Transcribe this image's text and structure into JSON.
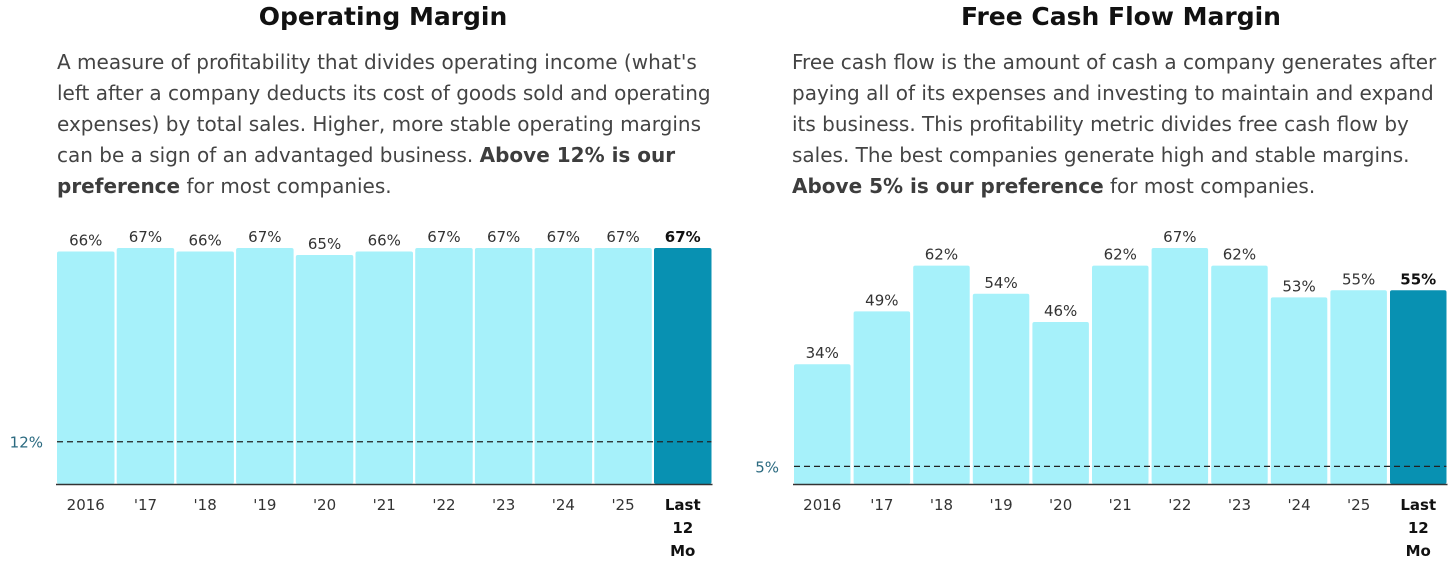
{
  "left_panel": {
    "title": "Operating Margin",
    "description_main": "A measure of profitability that divides operating income (what's left after a company deducts its cost of goods sold and operating expenses) by total sales. Higher, more stable operating margins can be a sign of an advantaged business.",
    "description_bold": "Above 12% is our preference",
    "description_tail": " for most companies."
  },
  "right_panel": {
    "title": "Free Cash Flow Margin",
    "description_main": "Free cash flow is the amount of cash a company generates after paying all of its expenses and investing to maintain and expand its business. This profitability metric divides free cash flow by sales. The best companies generate high and stable margins.",
    "description_bold": "Above 5% is our preference",
    "description_tail": " for most companies."
  },
  "colors": {
    "bar": "#a6f1fa",
    "bar_highlight": "#0891b2",
    "reference_label": "#2b6a80",
    "axis": "#333333"
  },
  "chart_data": [
    {
      "type": "bar",
      "title": "Operating Margin",
      "categories": [
        "2016",
        "'17",
        "'18",
        "'19",
        "'20",
        "'21",
        "'22",
        "'23",
        "'24",
        "'25",
        "Last 12 Mo"
      ],
      "values": [
        66,
        67,
        66,
        67,
        65,
        66,
        67,
        67,
        67,
        67,
        67
      ],
      "value_labels": [
        "66%",
        "67%",
        "66%",
        "67%",
        "65%",
        "66%",
        "67%",
        "67%",
        "67%",
        "67%",
        "67%"
      ],
      "highlight_index": 10,
      "reference_line": {
        "value": 12,
        "label": "12%"
      },
      "ylim": [
        0,
        67
      ],
      "grid": false,
      "xlabel": "",
      "ylabel": ""
    },
    {
      "type": "bar",
      "title": "Free Cash Flow Margin",
      "categories": [
        "2016",
        "'17",
        "'18",
        "'19",
        "'20",
        "'21",
        "'22",
        "'23",
        "'24",
        "'25",
        "Last 12 Mo"
      ],
      "values": [
        34,
        49,
        62,
        54,
        46,
        62,
        67,
        62,
        53,
        55,
        55
      ],
      "value_labels": [
        "34%",
        "49%",
        "62%",
        "54%",
        "46%",
        "62%",
        "67%",
        "62%",
        "53%",
        "55%",
        "55%"
      ],
      "highlight_index": 10,
      "reference_line": {
        "value": 5,
        "label": "5%"
      },
      "ylim": [
        0,
        67
      ],
      "grid": false,
      "xlabel": "",
      "ylabel": ""
    }
  ]
}
